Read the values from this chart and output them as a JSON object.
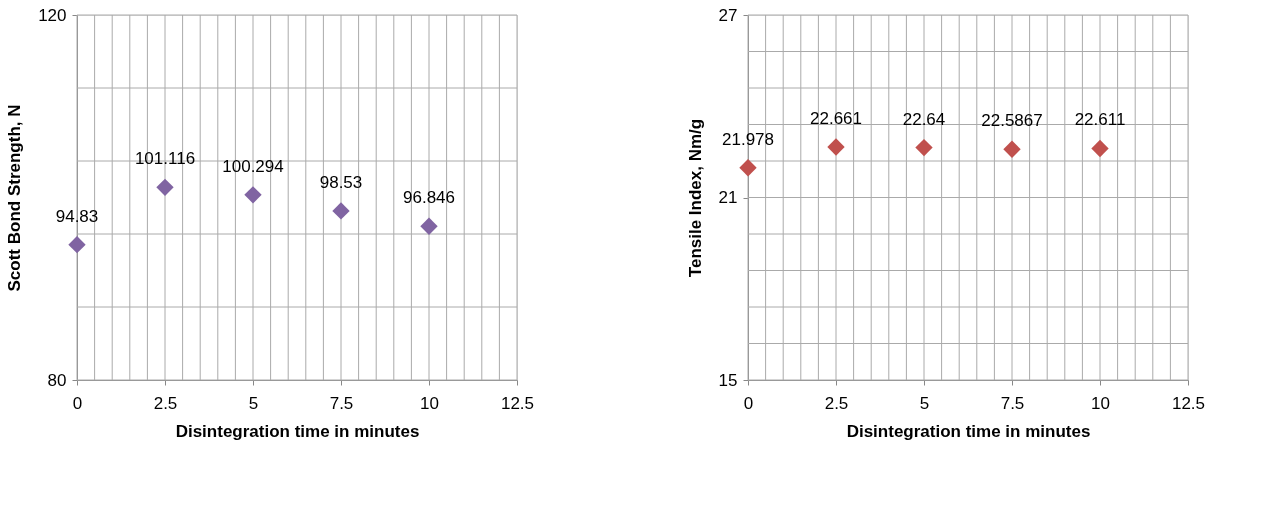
{
  "chart_data": [
    {
      "type": "scatter",
      "xlabel": "Disintegration time in minutes",
      "ylabel": "Scott Bond Strength, N",
      "x": [
        0,
        2.5,
        5,
        7.5,
        10
      ],
      "series": [
        {
          "color": "#8064a2",
          "values": [
            94.83,
            101.116,
            100.294,
            98.53,
            96.846
          ]
        }
      ],
      "xlim": [
        0,
        12.5
      ],
      "xticks": [
        0,
        {
          "value": 0.5,
          "label": null
        },
        {
          "value": 1,
          "label": null
        },
        {
          "value": 1.5,
          "label": null
        },
        {
          "value": 2,
          "label": null
        },
        2.5,
        {
          "value": 3,
          "label": null
        },
        {
          "value": 3.5,
          "label": null
        },
        {
          "value": 4,
          "label": null
        },
        {
          "value": 4.5,
          "label": null
        },
        5,
        {
          "value": 5.5,
          "label": null
        },
        {
          "value": 6,
          "label": null
        },
        {
          "value": 6.5,
          "label": null
        },
        {
          "value": 7,
          "label": null
        },
        7.5,
        {
          "value": 8,
          "label": null
        },
        {
          "value": 8.5,
          "label": null
        },
        {
          "value": 9,
          "label": null
        },
        {
          "value": 9.5,
          "label": null
        },
        10,
        {
          "value": 10.5,
          "label": null
        },
        {
          "value": 11,
          "label": null
        },
        {
          "value": 11.5,
          "label": null
        },
        {
          "value": 12,
          "label": null
        },
        12.5
      ],
      "ylim": [
        80,
        120
      ],
      "yticks": [
        80,
        {
          "value": 88,
          "label": null
        },
        {
          "value": 96,
          "label": null
        },
        {
          "value": 104,
          "label": null
        },
        {
          "value": 112,
          "label": null
        },
        120
      ],
      "grid": true,
      "legend": false,
      "marker": "diamond",
      "data_labels": true
    },
    {
      "type": "scatter",
      "xlabel": "Disintegration time in minutes",
      "ylabel": "Tensile Index, Nm/g",
      "x": [
        0,
        2.5,
        5,
        7.5,
        10
      ],
      "series": [
        {
          "color": "#c0504d",
          "values": [
            21.978,
            22.661,
            22.64,
            22.5867,
            22.611
          ]
        }
      ],
      "xlim": [
        0,
        12.5
      ],
      "xticks": [
        0,
        {
          "value": 0.5,
          "label": null
        },
        {
          "value": 1,
          "label": null
        },
        {
          "value": 1.5,
          "label": null
        },
        {
          "value": 2,
          "label": null
        },
        2.5,
        {
          "value": 3,
          "label": null
        },
        {
          "value": 3.5,
          "label": null
        },
        {
          "value": 4,
          "label": null
        },
        {
          "value": 4.5,
          "label": null
        },
        5,
        {
          "value": 5.5,
          "label": null
        },
        {
          "value": 6,
          "label": null
        },
        {
          "value": 6.5,
          "label": null
        },
        {
          "value": 7,
          "label": null
        },
        7.5,
        {
          "value": 8,
          "label": null
        },
        {
          "value": 8.5,
          "label": null
        },
        {
          "value": 9,
          "label": null
        },
        {
          "value": 9.5,
          "label": null
        },
        10,
        {
          "value": 10.5,
          "label": null
        },
        {
          "value": 11,
          "label": null
        },
        {
          "value": 11.5,
          "label": null
        },
        {
          "value": 12,
          "label": null
        },
        12.5
      ],
      "ylim": [
        15,
        27
      ],
      "yticks": [
        15,
        {
          "value": 16.2,
          "label": null
        },
        {
          "value": 17.4,
          "label": null
        },
        {
          "value": 18.6,
          "label": null
        },
        {
          "value": 19.8,
          "label": null
        },
        21,
        {
          "value": 22.2,
          "label": null
        },
        {
          "value": 23.4,
          "label": null
        },
        {
          "value": 24.6,
          "label": null
        },
        {
          "value": 25.8,
          "label": null
        },
        27
      ],
      "grid": true,
      "legend": false,
      "marker": "diamond",
      "data_labels": true
    }
  ]
}
